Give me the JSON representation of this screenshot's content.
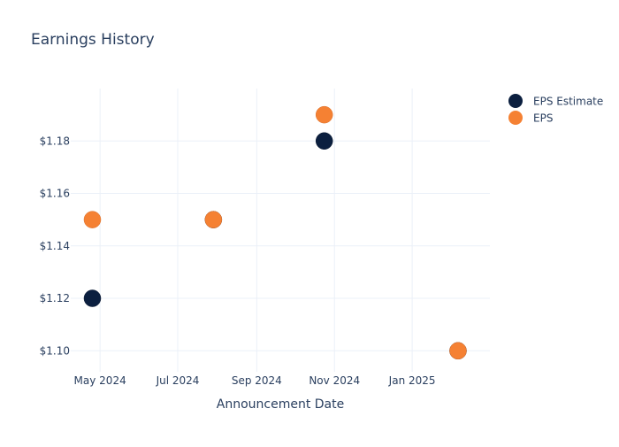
{
  "chart_data": {
    "type": "scatter",
    "title": "Earnings History",
    "xlabel": "Announcement Date",
    "ylabel": "",
    "x_ticks": [
      "May 2024",
      "Jul 2024",
      "Sep 2024",
      "Nov 2024",
      "Jan 2025"
    ],
    "y_ticks": [
      "$1.10",
      "$1.12",
      "$1.14",
      "$1.16",
      "$1.18"
    ],
    "ylim": [
      1.092,
      1.2
    ],
    "xlim": [
      "2024-04-08",
      "2025-03-03"
    ],
    "grid": true,
    "legend": "top-right",
    "series": [
      {
        "name": "EPS Estimate",
        "color": "#0b1f3f",
        "points": [
          {
            "x": "2024-04-25",
            "y": 1.12
          },
          {
            "x": "2024-07-29",
            "y": 1.15
          },
          {
            "x": "2024-10-24",
            "y": 1.18
          },
          {
            "x": "2025-02-06",
            "y": 1.1
          }
        ]
      },
      {
        "name": "EPS",
        "color": "#f58133",
        "points": [
          {
            "x": "2024-04-25",
            "y": 1.15
          },
          {
            "x": "2024-07-29",
            "y": 1.15
          },
          {
            "x": "2024-10-24",
            "y": 1.19
          },
          {
            "x": "2025-02-06",
            "y": 1.1
          }
        ]
      }
    ]
  }
}
